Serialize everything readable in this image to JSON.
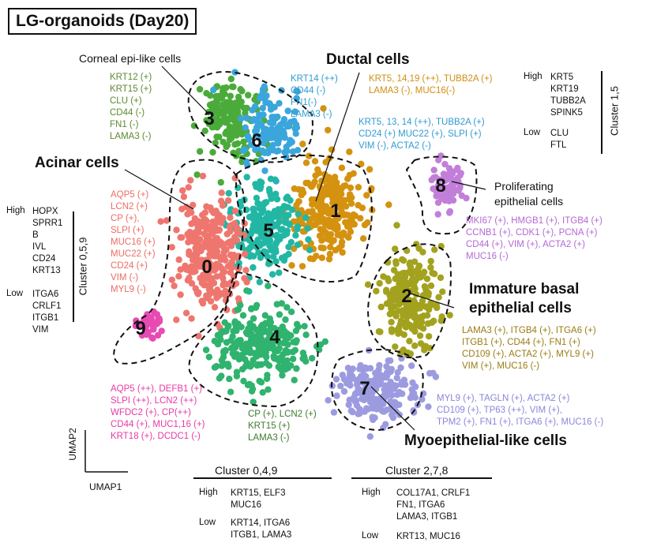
{
  "title": "LG-organoids (Day20)",
  "cell_types": {
    "corneal": "Corneal epi-like cells",
    "ductal": "Ductal cells",
    "acinar": "Acinar cells",
    "proliferating_1": "Proliferating",
    "proliferating_2": "epithelial cells",
    "immature_1": "Immature basal",
    "immature_2": "epithelial cells",
    "myo": "Myoepithelial-like cells"
  },
  "clusters": [
    "0",
    "1",
    "2",
    "3",
    "4",
    "5",
    "6",
    "7",
    "8",
    "9"
  ],
  "marker_lists": {
    "cluster3": "KRT12 (+)\nKRT15 (+)\nCLU (+)\nCD44 (-)\nFN1 (-)\nLAMA3 (-)",
    "cluster6": "KRT14 (++)\nCD44 (-)\nFN1(-)\nLAMA3 (-)",
    "ductal_a": "KRT5, 14,19 (++), TUBB2A (+)\nLAMA3 (-), MUC16(-)",
    "ductal_b": "KRT5, 13, 14 (++), TUBB2A (+)\nCD24 (+) MUC22 (+), SLPI (+)\nVIM (-), ACTA2 (-)",
    "acinar": "AQP5 (+)\nLCN2 (+)\nCP (+),\nSLPI (+)\nMUC16 (+)\nMUC22 (+)\nCD24 (+)\nVIM (-)\nMYL9 (-)",
    "proliferating": "MKI67 (+), HMGB1 (+), ITGB4 (+)\nCCNB1 (+), CDK1 (+), PCNA (+)\nCD44 (+), VIM (+), ACTA2 (+)\nMUC16 (-)",
    "immature": "LAMA3 (+), ITGB4 (+), ITGA6 (+)\nITGB1 (+), CD44 (+), FN1 (+)\nCD109 (+), ACTA2 (+), MYL9 (+)\nVIM (+), MUC16 (-)",
    "myo": "MYL9 (+), TAGLN (+), ACTA2 (+)\nCD109 (+), TP63 (++), VIM (+),\nTPM2 (+), FN1 (+), ITGA6 (+), MUC16 (-)",
    "cluster9": "AQP5 (++), DEFB1 (+)\nSLPI (++), LCN2 (++)\nWFDC2 (+), CP(++)\nCD44 (+), MUC1,16 (+)\nKRT18 (+), DCDC1 (-)",
    "cluster4": "CP (+), LCN2 (+)\nKRT15 (+)\nLAMA3 (-)"
  },
  "cluster_1_5": {
    "label": "Cluster 1,5",
    "high": "High",
    "high_genes": "KRT5\nKRT19\nTUBB2A\nSPINK5",
    "low": "Low",
    "low_genes": "CLU\nFTL"
  },
  "cluster_0_5_9": {
    "label": "Cluster 0,5,9",
    "high": "High",
    "high_genes": "HOPX\nSPRR1\nB\nIVL\nCD24\nKRT13",
    "low": "Low",
    "low_genes": "ITGA6\nCRLF1\nITGB1\nVIM"
  },
  "cluster_0_4_9": {
    "label": "Cluster 0,4,9",
    "high": "High",
    "high_genes": "KRT15, ELF3\nMUC16",
    "low": "Low",
    "low_genes": "KRT14, ITGA6\nITGB1, LAMA3"
  },
  "cluster_2_7_8": {
    "label": "Cluster 2,7,8",
    "high": "High",
    "high_genes": "COL17A1, CRLF1\nFN1, ITGA6\nLAMA3, ITGB1",
    "low": "Low",
    "low_genes": "KRT13, MUC16"
  },
  "axes": {
    "x": "UMAP1",
    "y": "UMAP2"
  },
  "colors": {
    "c0": "#ee766f",
    "c1": "#d4920f",
    "c2": "#a3a21e",
    "c3": "#4aab3a",
    "c4": "#2fb36e",
    "c5": "#22b7a4",
    "c6": "#3aa6dc",
    "c7": "#9d9be0",
    "c8": "#c27fd9",
    "c9": "#e84ab4",
    "txt_green": "#5b8a2e",
    "txt_blue": "#2e9bd1",
    "txt_orange": "#d08f12",
    "txt_salmon": "#ec6c62",
    "txt_purple": "#b567d6",
    "txt_olive": "#9a7c12",
    "txt_lavender": "#8a86d8",
    "txt_pink": "#e73aa6",
    "txt_dgreen": "#3d7a2a"
  }
}
